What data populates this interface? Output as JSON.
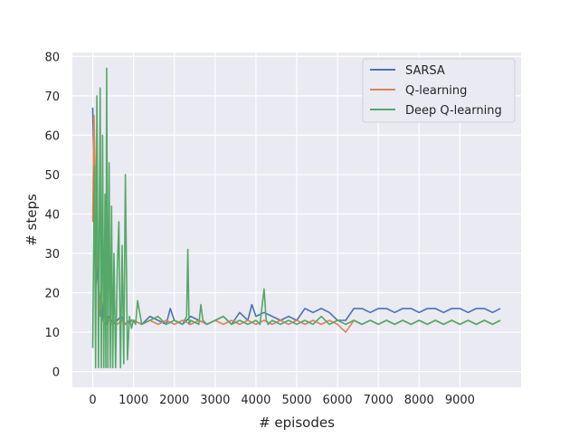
{
  "chart_data": {
    "type": "line",
    "title": "",
    "xlabel": "# episodes",
    "ylabel": "# steps",
    "xlim": [
      -500,
      10500
    ],
    "ylim": [
      -4,
      81
    ],
    "xticks": [
      0,
      1000,
      2000,
      3000,
      4000,
      5000,
      6000,
      7000,
      8000,
      9000
    ],
    "yticks": [
      0,
      10,
      20,
      30,
      40,
      50,
      60,
      70,
      80
    ],
    "grid": true,
    "legend_position": "top-right",
    "series": [
      {
        "name": "SARSA",
        "color": "#4c72b0",
        "x": [
          0,
          40,
          80,
          120,
          160,
          200,
          250,
          300,
          350,
          400,
          450,
          500,
          600,
          700,
          800,
          900,
          1000,
          1200,
          1400,
          1600,
          1800,
          1900,
          2000,
          2200,
          2400,
          2600,
          2800,
          3000,
          3200,
          3400,
          3600,
          3800,
          3900,
          4000,
          4200,
          4400,
          4600,
          4800,
          5000,
          5200,
          5400,
          5600,
          5800,
          6000,
          6200,
          6400,
          6600,
          6800,
          7000,
          7200,
          7400,
          7600,
          7800,
          8000,
          8200,
          8400,
          8600,
          8800,
          9000,
          9200,
          9400,
          9600,
          9800,
          9990
        ],
        "values": [
          67,
          45,
          22,
          28,
          14,
          20,
          13,
          16,
          12,
          14,
          13,
          12,
          13,
          14,
          12,
          13,
          13,
          12,
          14,
          13,
          12,
          16,
          13,
          12,
          14,
          13,
          12,
          13,
          14,
          12,
          15,
          13,
          17,
          14,
          15,
          14,
          13,
          14,
          13,
          16,
          15,
          16,
          15,
          13,
          13,
          16,
          16,
          15,
          16,
          16,
          15,
          16,
          16,
          15,
          16,
          16,
          15,
          16,
          16,
          15,
          16,
          16,
          15,
          16
        ]
      },
      {
        "name": "Q-learning",
        "color": "#dd8452",
        "x": [
          0,
          30,
          60,
          90,
          130,
          170,
          200,
          250,
          300,
          350,
          400,
          450,
          500,
          600,
          700,
          800,
          1000,
          1200,
          1400,
          1600,
          1800,
          2000,
          2200,
          2400,
          2600,
          2800,
          3000,
          3200,
          3400,
          3600,
          3800,
          4000,
          4200,
          4400,
          4600,
          4800,
          5000,
          5200,
          5400,
          5600,
          5800,
          6000,
          6200,
          6400,
          6600,
          6800,
          7000,
          7200,
          7400,
          7600,
          7800,
          8000,
          8200,
          8400,
          8600,
          8800,
          9000,
          9200,
          9400,
          9600,
          9800,
          9990
        ],
        "values": [
          38,
          65,
          50,
          30,
          25,
          18,
          14,
          13,
          12,
          14,
          13,
          12,
          13,
          12,
          13,
          12,
          13,
          12,
          13,
          12,
          13,
          12,
          13,
          12,
          13,
          12,
          13,
          12,
          13,
          12,
          13,
          12,
          13,
          12,
          13,
          12,
          13,
          12,
          13,
          12,
          13,
          12,
          10,
          13,
          12,
          13,
          12,
          13,
          12,
          13,
          12,
          13,
          12,
          13,
          12,
          13,
          12,
          13,
          12,
          13,
          12,
          13
        ]
      },
      {
        "name": "Deep Q-learning",
        "color": "#55a868",
        "x": [
          0,
          40,
          70,
          100,
          140,
          180,
          210,
          240,
          270,
          300,
          320,
          340,
          370,
          400,
          430,
          460,
          490,
          520,
          560,
          600,
          640,
          680,
          720,
          760,
          800,
          850,
          900,
          950,
          1000,
          1050,
          1100,
          1200,
          1400,
          1600,
          1800,
          2000,
          2200,
          2300,
          2330,
          2360,
          2400,
          2600,
          2650,
          2700,
          2800,
          3000,
          3200,
          3400,
          3600,
          3800,
          4000,
          4100,
          4200,
          4250,
          4300,
          4400,
          4600,
          4800,
          5000,
          5200,
          5400,
          5600,
          5800,
          6000,
          6200,
          6400,
          6600,
          6800,
          7000,
          7200,
          7400,
          7600,
          7800,
          8000,
          8200,
          8400,
          8600,
          8800,
          9000,
          9200,
          9400,
          9600,
          9800,
          9990
        ],
        "values": [
          6,
          52,
          1,
          70,
          1,
          72,
          1,
          60,
          1,
          45,
          1,
          77,
          1,
          53,
          1,
          42,
          1,
          30,
          1,
          26,
          38,
          1,
          32,
          2,
          50,
          3,
          14,
          11,
          13,
          12,
          18,
          12,
          13,
          14,
          12,
          13,
          12,
          14,
          31,
          12,
          13,
          12,
          17,
          13,
          12,
          13,
          14,
          12,
          13,
          12,
          13,
          12,
          21,
          13,
          12,
          13,
          12,
          13,
          12,
          13,
          12,
          14,
          12,
          13,
          12,
          13,
          12,
          13,
          12,
          13,
          12,
          13,
          12,
          13,
          12,
          13,
          12,
          13,
          12,
          13,
          12,
          13,
          12,
          13
        ]
      }
    ]
  }
}
